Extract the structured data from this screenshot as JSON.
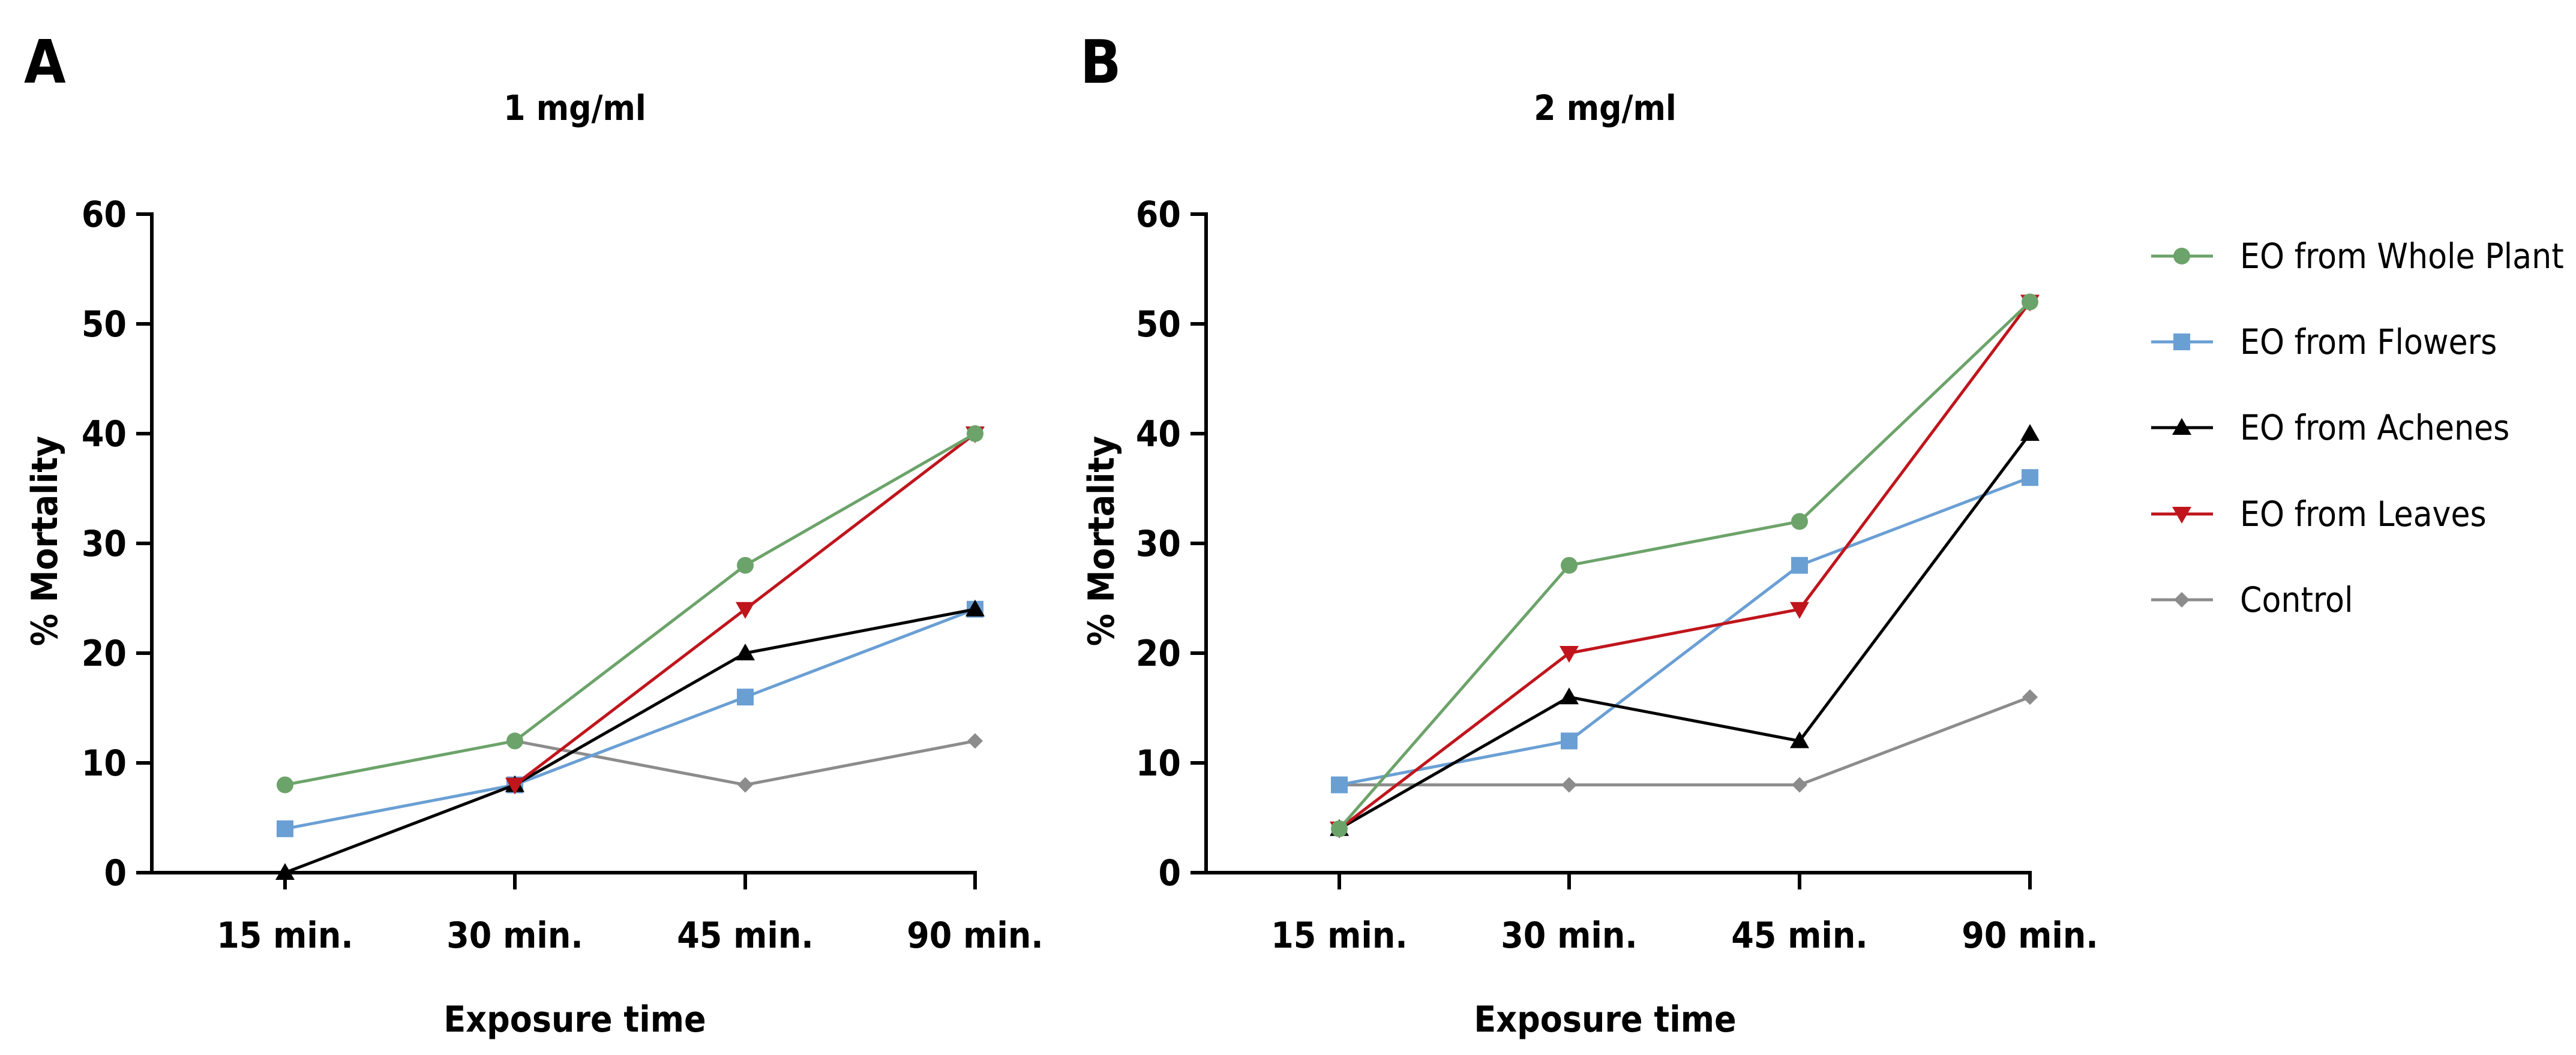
{
  "chart_data": [
    {
      "type": "line",
      "panel": "A",
      "title": "1 mg/ml",
      "xlabel": "Exposure time",
      "ylabel": "% Mortality",
      "categories": [
        "15 min.",
        "30 min.",
        "45 min.",
        "90 min."
      ],
      "ylim": [
        0,
        60
      ],
      "yticks": [
        0,
        10,
        20,
        30,
        40,
        50,
        60
      ],
      "grid": false,
      "series": [
        {
          "name": "Control",
          "marker": "diamond",
          "color": "#8c8c8c",
          "values": [
            null,
            12,
            8,
            12
          ]
        },
        {
          "name": "EO from Flowers",
          "marker": "square",
          "color": "#6a9fd4",
          "values": [
            4,
            8,
            16,
            24
          ]
        },
        {
          "name": "EO from Achenes",
          "marker": "triangle-up",
          "color": "#000000",
          "values": [
            0,
            8,
            20,
            24
          ]
        },
        {
          "name": "EO from Leaves",
          "marker": "triangle-down",
          "color": "#c0151c",
          "values": [
            null,
            8,
            24,
            40
          ]
        },
        {
          "name": "EO from Whole Plant",
          "marker": "circle",
          "color": "#6ca36a",
          "values": [
            8,
            12,
            28,
            40
          ]
        }
      ]
    },
    {
      "type": "line",
      "panel": "B",
      "title": "2 mg/ml",
      "xlabel": "Exposure time",
      "ylabel": "% Mortality",
      "categories": [
        "15 min.",
        "30 min.",
        "45 min.",
        "90 min."
      ],
      "ylim": [
        0,
        60
      ],
      "yticks": [
        0,
        10,
        20,
        30,
        40,
        50,
        60
      ],
      "grid": false,
      "series": [
        {
          "name": "Control",
          "marker": "diamond",
          "color": "#8c8c8c",
          "values": [
            8,
            8,
            8,
            16
          ]
        },
        {
          "name": "EO from Flowers",
          "marker": "square",
          "color": "#6a9fd4",
          "values": [
            8,
            12,
            28,
            36
          ]
        },
        {
          "name": "EO from Achenes",
          "marker": "triangle-up",
          "color": "#000000",
          "values": [
            4,
            16,
            12,
            40
          ]
        },
        {
          "name": "EO from Leaves",
          "marker": "triangle-down",
          "color": "#c0151c",
          "values": [
            4,
            20,
            24,
            52
          ]
        },
        {
          "name": "EO from Whole Plant",
          "marker": "circle",
          "color": "#6ca36a",
          "values": [
            4,
            28,
            32,
            52
          ]
        }
      ]
    }
  ],
  "legend": {
    "position": "right",
    "entries": [
      {
        "name": "EO from Whole Plant",
        "marker": "circle",
        "color": "#6ca36a"
      },
      {
        "name": "EO from Flowers",
        "marker": "square",
        "color": "#6a9fd4"
      },
      {
        "name": "EO from Achenes",
        "marker": "triangle-up",
        "color": "#000000"
      },
      {
        "name": "EO from Leaves",
        "marker": "triangle-down",
        "color": "#c0151c"
      },
      {
        "name": "Control",
        "marker": "diamond",
        "color": "#8c8c8c"
      }
    ]
  }
}
